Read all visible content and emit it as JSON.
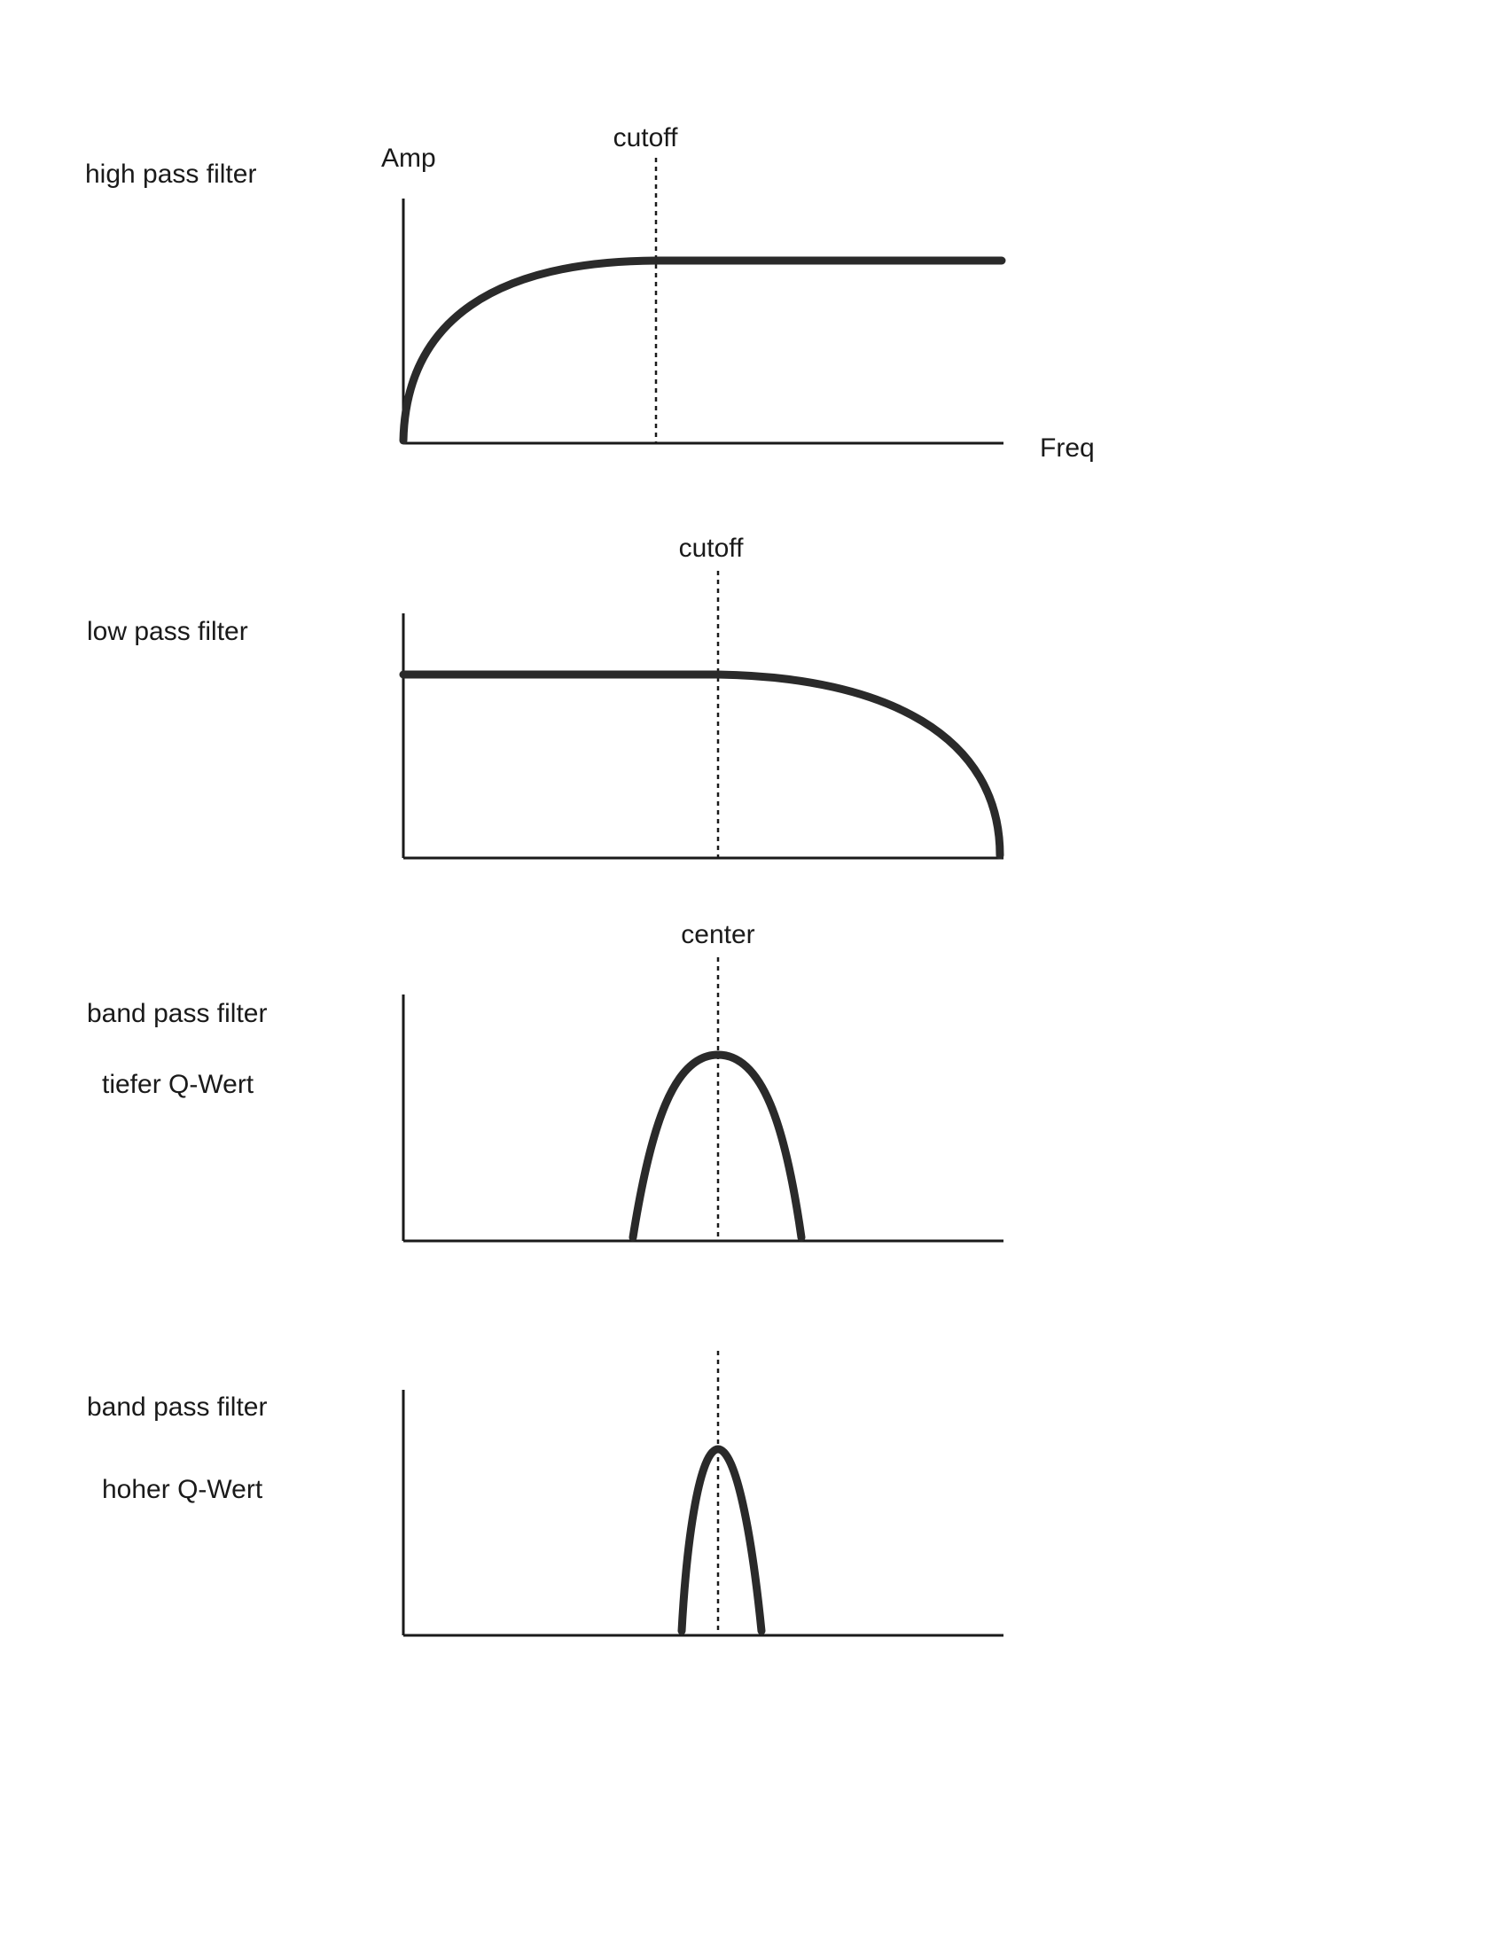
{
  "panels": [
    {
      "type": "highpass",
      "label_lines": [
        "high pass filter"
      ],
      "marker_label": "cutoff",
      "y_axis_label": "Amp",
      "x_axis_label": "Freq"
    },
    {
      "type": "lowpass",
      "label_lines": [
        "low pass filter"
      ],
      "marker_label": "cutoff",
      "y_axis_label": "",
      "x_axis_label": ""
    },
    {
      "type": "bandpass-wide",
      "label_lines": [
        "band pass filter",
        "tiefer Q-Wert"
      ],
      "marker_label": "center",
      "y_axis_label": "",
      "x_axis_label": ""
    },
    {
      "type": "bandpass-narrow",
      "label_lines": [
        "band pass filter",
        "hoher Q-Wert"
      ],
      "marker_label": "",
      "y_axis_label": "",
      "x_axis_label": ""
    }
  ],
  "colors": {
    "ink": "#1a1a1a",
    "curve": "#2a2a2a",
    "background": "#ffffff"
  }
}
